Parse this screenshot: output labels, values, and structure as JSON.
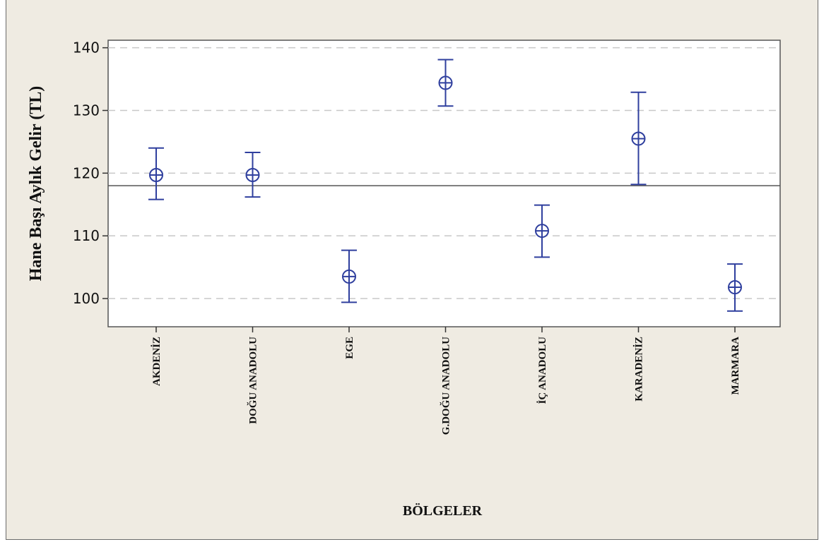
{
  "chart_data": {
    "type": "interval",
    "title": "",
    "xlabel": "BÖLGELER",
    "ylabel": "Hane Başı Aylık Gelir (TL)",
    "categories": [
      "AKDENİZ",
      "DOĞU ANADOLU",
      "EGE",
      "G.DOĞU ANADOLU",
      "İÇ ANADOLU",
      "KARADENİZ",
      "MARMARA"
    ],
    "series": [
      {
        "mean": [
          119.7,
          119.7,
          103.5,
          134.4,
          110.8,
          125.5,
          101.8
        ],
        "lower": [
          115.8,
          116.2,
          99.4,
          130.7,
          106.6,
          118.2,
          98.0
        ],
        "upper": [
          124.0,
          123.3,
          107.7,
          138.1,
          114.9,
          132.9,
          105.5
        ]
      }
    ],
    "reference_line": 118.0,
    "yticks": [
      100,
      110,
      120,
      130,
      140
    ],
    "ylim": [
      95.5,
      141.2
    ],
    "grid": "horizontal dashed",
    "colors": {
      "interval": "#2f3f9e",
      "reference": "#555555",
      "grid": "#c8c8c8"
    }
  }
}
